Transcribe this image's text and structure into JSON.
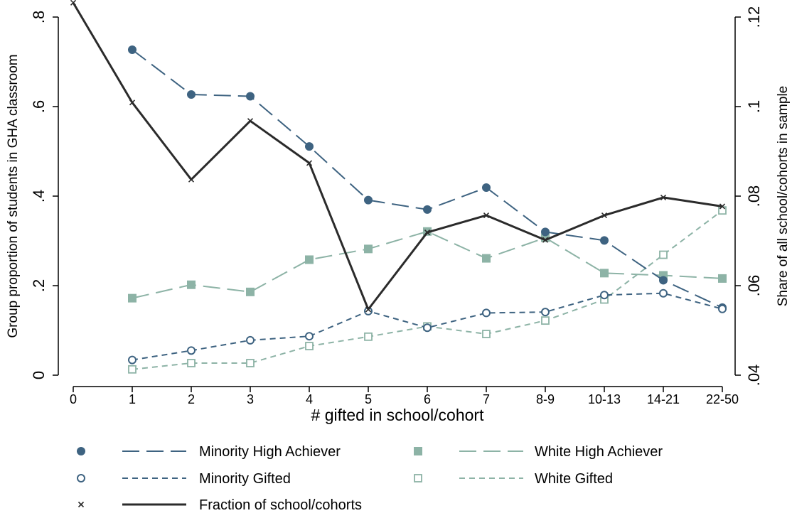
{
  "chart_data": {
    "type": "line",
    "title": "",
    "xlabel": "# gifted in school/cohort",
    "ylabel": "Group proportion of students in GHA classroom",
    "y2label": "Share of all school/cohorts in sample",
    "categories": [
      "0",
      "1",
      "2",
      "3",
      "4",
      "5",
      "6",
      "7",
      "8-9",
      "10-13",
      "14-21",
      "22-50"
    ],
    "ylim": [
      0,
      0.8
    ],
    "y2lim": [
      0.04,
      0.12
    ],
    "yticks": [
      ".8",
      ".6",
      ".4",
      ".2",
      "0"
    ],
    "y2ticks": [
      ".12",
      ".1",
      ".08",
      ".06",
      ".04"
    ],
    "grid": false,
    "legend_position": "bottom",
    "series": [
      {
        "name": "Minority High Achiever",
        "axis": "left",
        "color": "#3e6381",
        "marker": "filled-circle",
        "line": "long-dash",
        "values": [
          null,
          0.727,
          0.627,
          0.623,
          0.511,
          0.391,
          0.37,
          0.419,
          0.32,
          0.301,
          0.212,
          0.151
        ]
      },
      {
        "name": "White High Achiever",
        "axis": "left",
        "color": "#8db3a6",
        "marker": "filled-square",
        "line": "long-dash",
        "values": [
          null,
          0.172,
          0.202,
          0.186,
          0.258,
          0.282,
          0.321,
          0.261,
          0.307,
          0.228,
          0.223,
          0.216
        ]
      },
      {
        "name": "Minority Gifted",
        "axis": "left",
        "color": "#3e6381",
        "marker": "hollow-circle",
        "line": "short-dash",
        "values": [
          null,
          0.034,
          0.055,
          0.078,
          0.087,
          0.143,
          0.106,
          0.139,
          0.141,
          0.179,
          0.183,
          0.148
        ]
      },
      {
        "name": "White Gifted",
        "axis": "left",
        "color": "#8db3a6",
        "marker": "hollow-square",
        "line": "short-dash",
        "values": [
          null,
          0.013,
          0.027,
          0.027,
          0.065,
          0.086,
          0.109,
          0.092,
          0.122,
          0.169,
          0.269,
          0.368
        ]
      },
      {
        "name": "Fraction of school/cohorts",
        "axis": "right",
        "color": "#2b2b2b",
        "marker": "x",
        "line": "solid",
        "values": [
          0.1232,
          0.1009,
          0.0837,
          0.0968,
          0.0874,
          0.0547,
          0.0719,
          0.0757,
          0.0702,
          0.0757,
          0.0797,
          0.0777
        ]
      }
    ]
  }
}
